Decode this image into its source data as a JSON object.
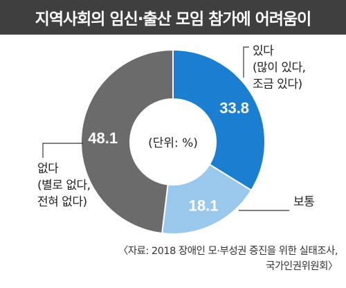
{
  "title": "지역사회의 임신·출산 모임 참가에 어려움이",
  "chart_data": {
    "type": "pie",
    "donut": true,
    "unit_note": "(단위: %)",
    "slices": [
      {
        "label_lines": [
          "있다",
          "(많이 있다,",
          "조금 있다)"
        ],
        "value": 33.8,
        "value_text": "33.8",
        "color": "#1a7fd1"
      },
      {
        "label_lines": [
          "보통"
        ],
        "value": 18.1,
        "value_text": "18.1",
        "color": "#9ac8ec"
      },
      {
        "label_lines": [
          "없다",
          "(별로 없다,",
          "전혀 없다)"
        ],
        "value": 48.1,
        "value_text": "48.1",
        "color": "#6b6b6b"
      }
    ]
  },
  "source": {
    "line1": "〈자료: 2018 장애인 모·부성권 증진을 위한 실태조사,",
    "line2": "국가인권위원회〉"
  }
}
